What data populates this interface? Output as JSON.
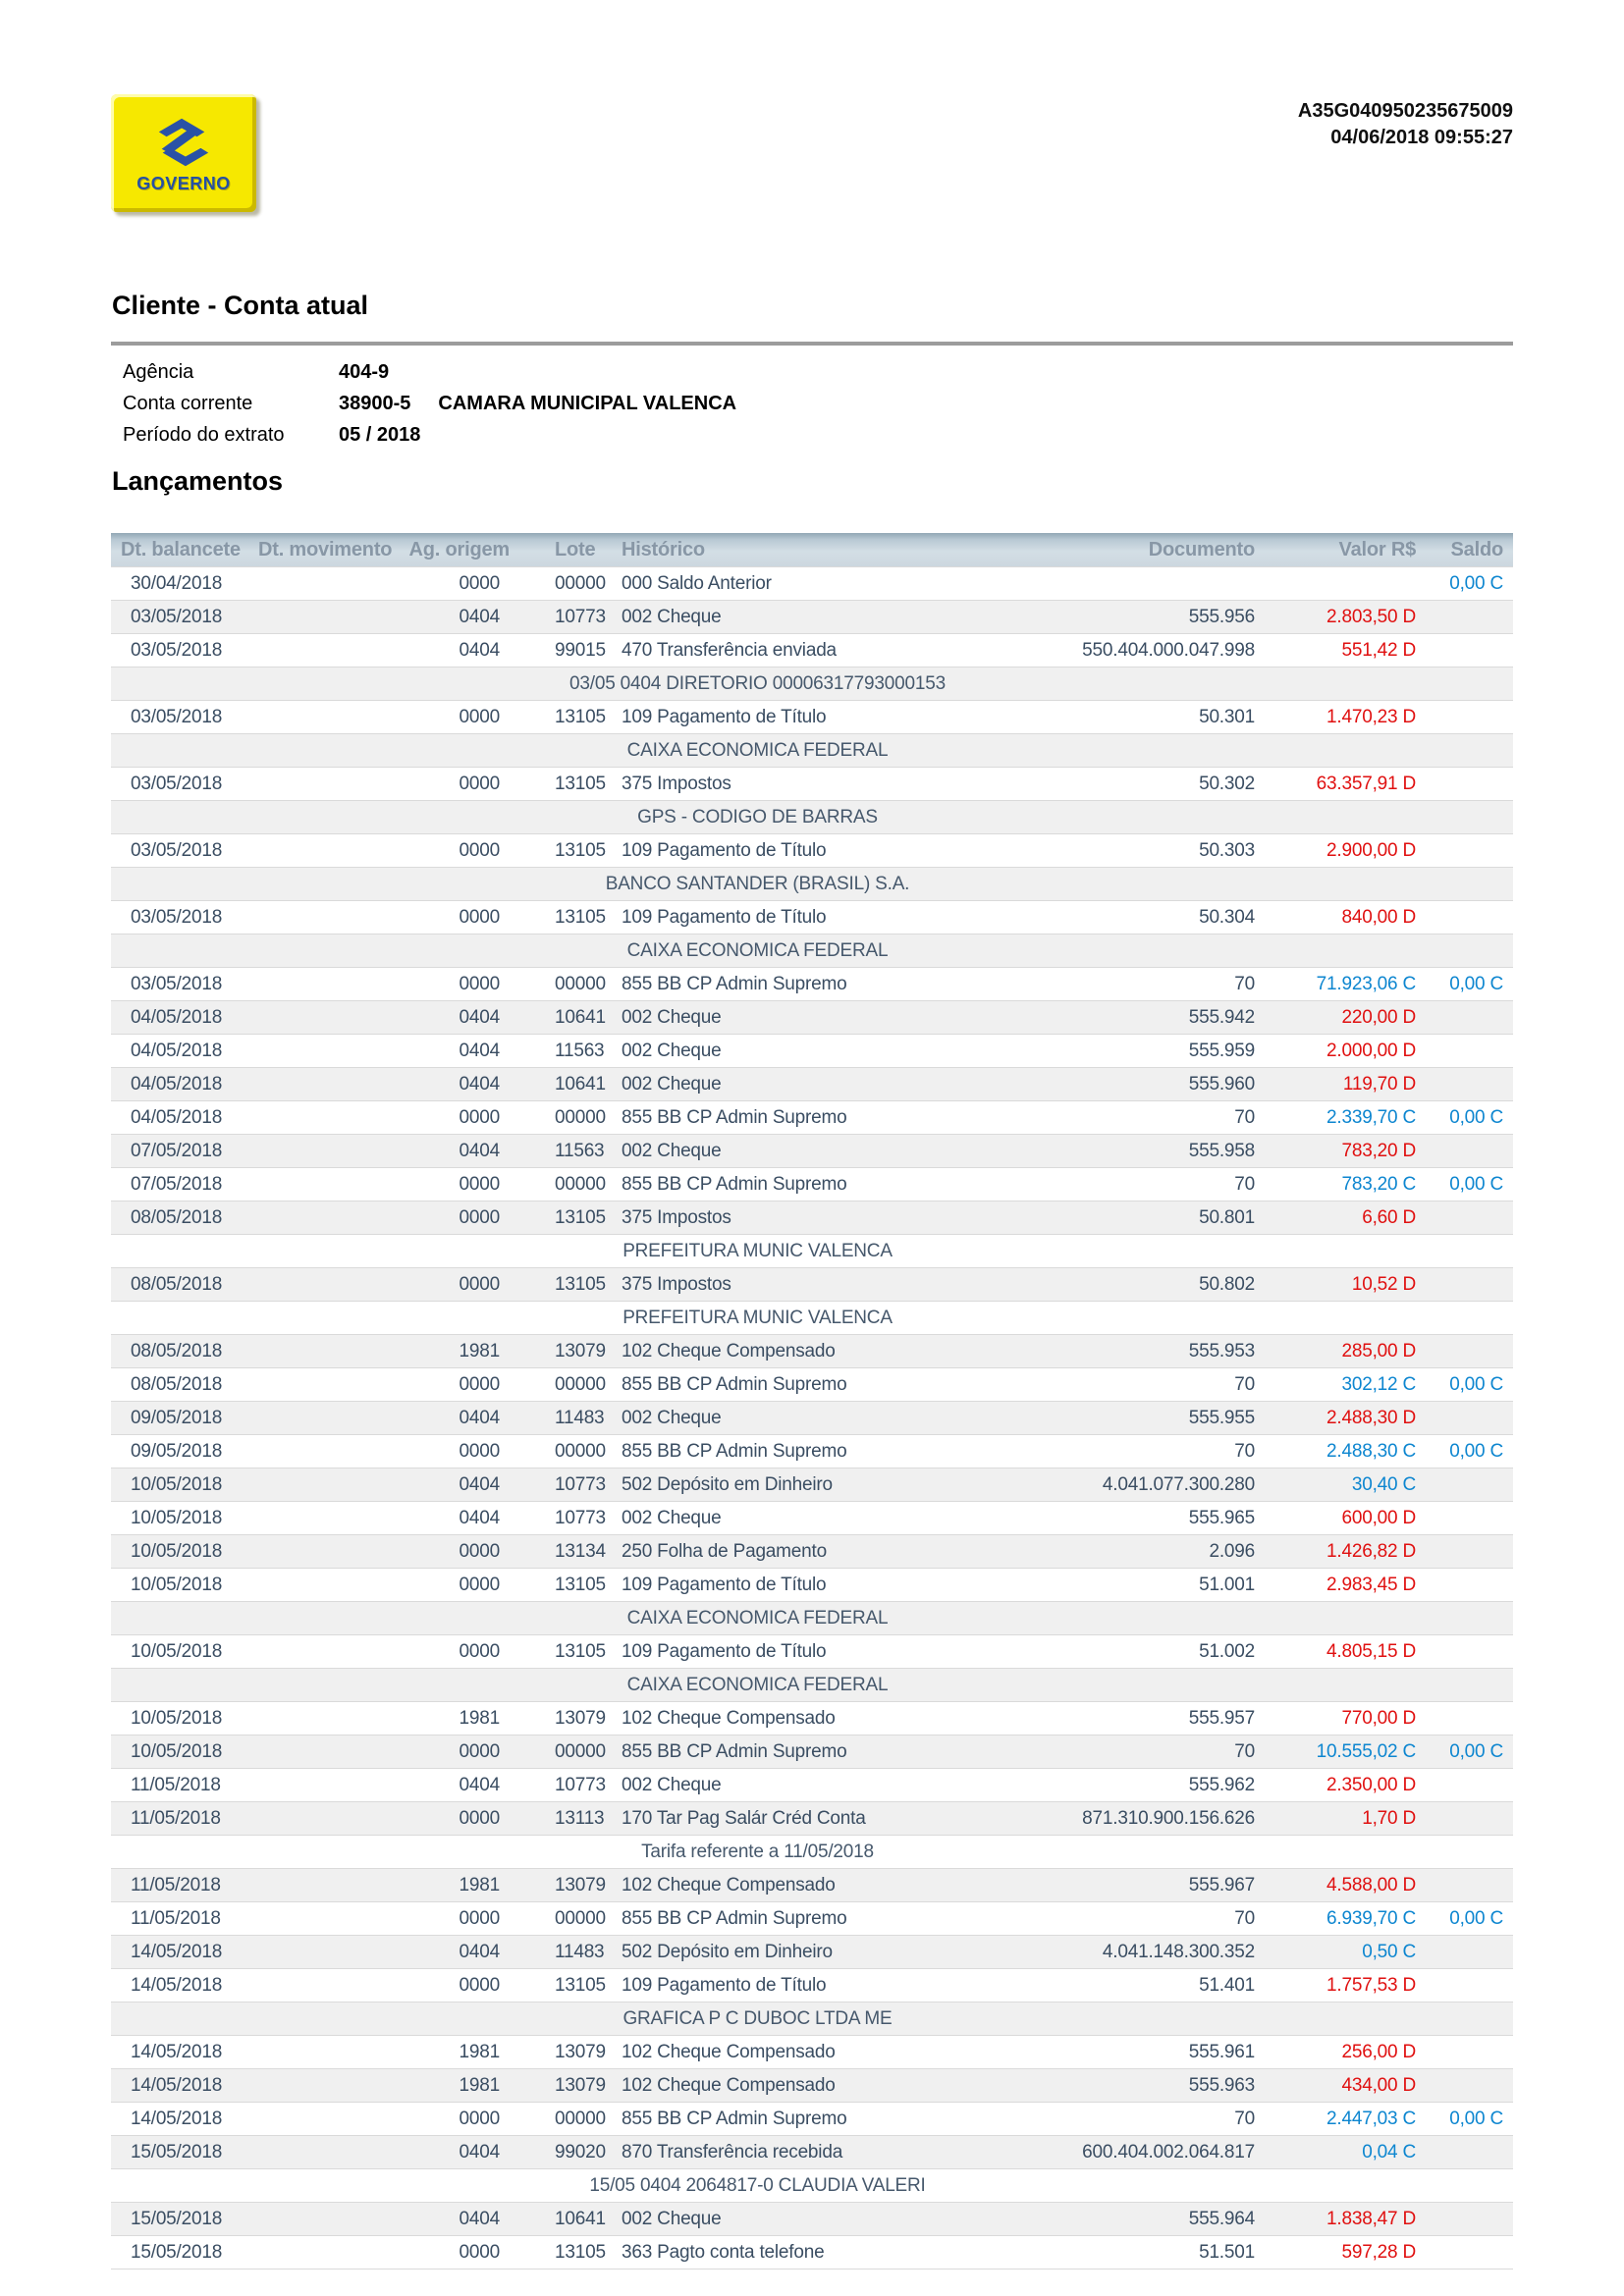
{
  "meta": {
    "protocol": "A35G040950235675009",
    "datetime": "04/06/2018 09:55:27"
  },
  "logo": {
    "text": "GOVERNO",
    "icon": "banco-do-brasil-brand-icon"
  },
  "colors": {
    "brand_yellow": "#f6e800",
    "brand_blue": "#2550a4",
    "debit_red": "#e01010",
    "credit_blue": "#0d86d0",
    "header_bar": "#ccd7df",
    "stripe_gray": "#f0f0f0"
  },
  "section_title": "Cliente - Conta atual",
  "account": {
    "agencia_label": "Agência",
    "agencia": "404-9",
    "conta_label": "Conta corrente",
    "conta_numero": "38900-5",
    "conta_titular": "CAMARA MUNICIPAL VALENCA",
    "periodo_label": "Período do extrato",
    "periodo": "05 / 2018"
  },
  "table_title": "Lançamentos",
  "table": {
    "headers": [
      "Dt. balancete",
      "Dt. movimento",
      "Ag. origem",
      "Lote",
      "Histórico",
      "Documento",
      "Valor R$",
      "Saldo"
    ],
    "rows": [
      {
        "type": "data",
        "dt_balancete": "30/04/2018",
        "dt_movimento": "",
        "ag_origem": "0000",
        "lote": "00000",
        "historico": "000 Saldo Anterior",
        "documento": "",
        "valor": "",
        "tipo": "",
        "saldo": "0,00 C"
      },
      {
        "type": "data",
        "dt_balancete": "03/05/2018",
        "dt_movimento": "",
        "ag_origem": "0404",
        "lote": "10773",
        "historico": "002 Cheque",
        "documento": "555.956",
        "valor": "2.803,50",
        "tipo": "D",
        "saldo": ""
      },
      {
        "type": "data",
        "dt_balancete": "03/05/2018",
        "dt_movimento": "",
        "ag_origem": "0404",
        "lote": "99015",
        "historico": "470 Transferência enviada",
        "documento": "550.404.000.047.998",
        "valor": "551,42",
        "tipo": "D",
        "saldo": ""
      },
      {
        "type": "cont",
        "text": "03/05 0404 DIRETORIO 00006317793000153"
      },
      {
        "type": "data",
        "dt_balancete": "03/05/2018",
        "dt_movimento": "",
        "ag_origem": "0000",
        "lote": "13105",
        "historico": "109 Pagamento de Título",
        "documento": "50.301",
        "valor": "1.470,23",
        "tipo": "D",
        "saldo": ""
      },
      {
        "type": "cont",
        "text": "CAIXA ECONOMICA FEDERAL"
      },
      {
        "type": "data",
        "dt_balancete": "03/05/2018",
        "dt_movimento": "",
        "ag_origem": "0000",
        "lote": "13105",
        "historico": "375 Impostos",
        "documento": "50.302",
        "valor": "63.357,91",
        "tipo": "D",
        "saldo": ""
      },
      {
        "type": "cont",
        "text": "GPS - CODIGO DE BARRAS"
      },
      {
        "type": "data",
        "dt_balancete": "03/05/2018",
        "dt_movimento": "",
        "ag_origem": "0000",
        "lote": "13105",
        "historico": "109 Pagamento de Título",
        "documento": "50.303",
        "valor": "2.900,00",
        "tipo": "D",
        "saldo": ""
      },
      {
        "type": "cont",
        "text": "BANCO SANTANDER (BRASIL) S.A."
      },
      {
        "type": "data",
        "dt_balancete": "03/05/2018",
        "dt_movimento": "",
        "ag_origem": "0000",
        "lote": "13105",
        "historico": "109 Pagamento de Título",
        "documento": "50.304",
        "valor": "840,00",
        "tipo": "D",
        "saldo": ""
      },
      {
        "type": "cont",
        "text": "CAIXA ECONOMICA FEDERAL"
      },
      {
        "type": "data",
        "dt_balancete": "03/05/2018",
        "dt_movimento": "",
        "ag_origem": "0000",
        "lote": "00000",
        "historico": "855 BB CP Admin Supremo",
        "documento": "70",
        "valor": "71.923,06",
        "tipo": "C",
        "saldo": "0,00 C"
      },
      {
        "type": "data",
        "dt_balancete": "04/05/2018",
        "dt_movimento": "",
        "ag_origem": "0404",
        "lote": "10641",
        "historico": "002 Cheque",
        "documento": "555.942",
        "valor": "220,00",
        "tipo": "D",
        "saldo": ""
      },
      {
        "type": "data",
        "dt_balancete": "04/05/2018",
        "dt_movimento": "",
        "ag_origem": "0404",
        "lote": "11563",
        "historico": "002 Cheque",
        "documento": "555.959",
        "valor": "2.000,00",
        "tipo": "D",
        "saldo": ""
      },
      {
        "type": "data",
        "dt_balancete": "04/05/2018",
        "dt_movimento": "",
        "ag_origem": "0404",
        "lote": "10641",
        "historico": "002 Cheque",
        "documento": "555.960",
        "valor": "119,70",
        "tipo": "D",
        "saldo": ""
      },
      {
        "type": "data",
        "dt_balancete": "04/05/2018",
        "dt_movimento": "",
        "ag_origem": "0000",
        "lote": "00000",
        "historico": "855 BB CP Admin Supremo",
        "documento": "70",
        "valor": "2.339,70",
        "tipo": "C",
        "saldo": "0,00 C"
      },
      {
        "type": "data",
        "dt_balancete": "07/05/2018",
        "dt_movimento": "",
        "ag_origem": "0404",
        "lote": "11563",
        "historico": "002 Cheque",
        "documento": "555.958",
        "valor": "783,20",
        "tipo": "D",
        "saldo": ""
      },
      {
        "type": "data",
        "dt_balancete": "07/05/2018",
        "dt_movimento": "",
        "ag_origem": "0000",
        "lote": "00000",
        "historico": "855 BB CP Admin Supremo",
        "documento": "70",
        "valor": "783,20",
        "tipo": "C",
        "saldo": "0,00 C"
      },
      {
        "type": "data",
        "dt_balancete": "08/05/2018",
        "dt_movimento": "",
        "ag_origem": "0000",
        "lote": "13105",
        "historico": "375 Impostos",
        "documento": "50.801",
        "valor": "6,60",
        "tipo": "D",
        "saldo": ""
      },
      {
        "type": "cont",
        "text": "PREFEITURA MUNIC VALENCA"
      },
      {
        "type": "data",
        "dt_balancete": "08/05/2018",
        "dt_movimento": "",
        "ag_origem": "0000",
        "lote": "13105",
        "historico": "375 Impostos",
        "documento": "50.802",
        "valor": "10,52",
        "tipo": "D",
        "saldo": ""
      },
      {
        "type": "cont",
        "text": "PREFEITURA MUNIC VALENCA"
      },
      {
        "type": "data",
        "dt_balancete": "08/05/2018",
        "dt_movimento": "",
        "ag_origem": "1981",
        "lote": "13079",
        "historico": "102 Cheque Compensado",
        "documento": "555.953",
        "valor": "285,00",
        "tipo": "D",
        "saldo": ""
      },
      {
        "type": "data",
        "dt_balancete": "08/05/2018",
        "dt_movimento": "",
        "ag_origem": "0000",
        "lote": "00000",
        "historico": "855 BB CP Admin Supremo",
        "documento": "70",
        "valor": "302,12",
        "tipo": "C",
        "saldo": "0,00 C"
      },
      {
        "type": "data",
        "dt_balancete": "09/05/2018",
        "dt_movimento": "",
        "ag_origem": "0404",
        "lote": "11483",
        "historico": "002 Cheque",
        "documento": "555.955",
        "valor": "2.488,30",
        "tipo": "D",
        "saldo": ""
      },
      {
        "type": "data",
        "dt_balancete": "09/05/2018",
        "dt_movimento": "",
        "ag_origem": "0000",
        "lote": "00000",
        "historico": "855 BB CP Admin Supremo",
        "documento": "70",
        "valor": "2.488,30",
        "tipo": "C",
        "saldo": "0,00 C"
      },
      {
        "type": "data",
        "dt_balancete": "10/05/2018",
        "dt_movimento": "",
        "ag_origem": "0404",
        "lote": "10773",
        "historico": "502 Depósito em Dinheiro",
        "documento": "4.041.077.300.280",
        "valor": "30,40",
        "tipo": "C",
        "saldo": ""
      },
      {
        "type": "data",
        "dt_balancete": "10/05/2018",
        "dt_movimento": "",
        "ag_origem": "0404",
        "lote": "10773",
        "historico": "002 Cheque",
        "documento": "555.965",
        "valor": "600,00",
        "tipo": "D",
        "saldo": ""
      },
      {
        "type": "data",
        "dt_balancete": "10/05/2018",
        "dt_movimento": "",
        "ag_origem": "0000",
        "lote": "13134",
        "historico": "250 Folha de Pagamento",
        "documento": "2.096",
        "valor": "1.426,82",
        "tipo": "D",
        "saldo": ""
      },
      {
        "type": "data",
        "dt_balancete": "10/05/2018",
        "dt_movimento": "",
        "ag_origem": "0000",
        "lote": "13105",
        "historico": "109 Pagamento de Título",
        "documento": "51.001",
        "valor": "2.983,45",
        "tipo": "D",
        "saldo": ""
      },
      {
        "type": "cont",
        "text": "CAIXA ECONOMICA FEDERAL"
      },
      {
        "type": "data",
        "dt_balancete": "10/05/2018",
        "dt_movimento": "",
        "ag_origem": "0000",
        "lote": "13105",
        "historico": "109 Pagamento de Título",
        "documento": "51.002",
        "valor": "4.805,15",
        "tipo": "D",
        "saldo": ""
      },
      {
        "type": "cont",
        "text": "CAIXA ECONOMICA FEDERAL"
      },
      {
        "type": "data",
        "dt_balancete": "10/05/2018",
        "dt_movimento": "",
        "ag_origem": "1981",
        "lote": "13079",
        "historico": "102 Cheque Compensado",
        "documento": "555.957",
        "valor": "770,00",
        "tipo": "D",
        "saldo": ""
      },
      {
        "type": "data",
        "dt_balancete": "10/05/2018",
        "dt_movimento": "",
        "ag_origem": "0000",
        "lote": "00000",
        "historico": "855 BB CP Admin Supremo",
        "documento": "70",
        "valor": "10.555,02",
        "tipo": "C",
        "saldo": "0,00 C"
      },
      {
        "type": "data",
        "dt_balancete": "11/05/2018",
        "dt_movimento": "",
        "ag_origem": "0404",
        "lote": "10773",
        "historico": "002 Cheque",
        "documento": "555.962",
        "valor": "2.350,00",
        "tipo": "D",
        "saldo": ""
      },
      {
        "type": "data",
        "dt_balancete": "11/05/2018",
        "dt_movimento": "",
        "ag_origem": "0000",
        "lote": "13113",
        "historico": "170 Tar Pag Salár Créd Conta",
        "documento": "871.310.900.156.626",
        "valor": "1,70",
        "tipo": "D",
        "saldo": ""
      },
      {
        "type": "cont",
        "text": "Tarifa referente a 11/05/2018"
      },
      {
        "type": "data",
        "dt_balancete": "11/05/2018",
        "dt_movimento": "",
        "ag_origem": "1981",
        "lote": "13079",
        "historico": "102 Cheque Compensado",
        "documento": "555.967",
        "valor": "4.588,00",
        "tipo": "D",
        "saldo": ""
      },
      {
        "type": "data",
        "dt_balancete": "11/05/2018",
        "dt_movimento": "",
        "ag_origem": "0000",
        "lote": "00000",
        "historico": "855 BB CP Admin Supremo",
        "documento": "70",
        "valor": "6.939,70",
        "tipo": "C",
        "saldo": "0,00 C"
      },
      {
        "type": "data",
        "dt_balancete": "14/05/2018",
        "dt_movimento": "",
        "ag_origem": "0404",
        "lote": "11483",
        "historico": "502 Depósito em Dinheiro",
        "documento": "4.041.148.300.352",
        "valor": "0,50",
        "tipo": "C",
        "saldo": ""
      },
      {
        "type": "data",
        "dt_balancete": "14/05/2018",
        "dt_movimento": "",
        "ag_origem": "0000",
        "lote": "13105",
        "historico": "109 Pagamento de Título",
        "documento": "51.401",
        "valor": "1.757,53",
        "tipo": "D",
        "saldo": ""
      },
      {
        "type": "cont",
        "text": "GRAFICA P C DUBOC LTDA ME"
      },
      {
        "type": "data",
        "dt_balancete": "14/05/2018",
        "dt_movimento": "",
        "ag_origem": "1981",
        "lote": "13079",
        "historico": "102 Cheque Compensado",
        "documento": "555.961",
        "valor": "256,00",
        "tipo": "D",
        "saldo": ""
      },
      {
        "type": "data",
        "dt_balancete": "14/05/2018",
        "dt_movimento": "",
        "ag_origem": "1981",
        "lote": "13079",
        "historico": "102 Cheque Compensado",
        "documento": "555.963",
        "valor": "434,00",
        "tipo": "D",
        "saldo": ""
      },
      {
        "type": "data",
        "dt_balancete": "14/05/2018",
        "dt_movimento": "",
        "ag_origem": "0000",
        "lote": "00000",
        "historico": "855 BB CP Admin Supremo",
        "documento": "70",
        "valor": "2.447,03",
        "tipo": "C",
        "saldo": "0,00 C"
      },
      {
        "type": "data",
        "dt_balancete": "15/05/2018",
        "dt_movimento": "",
        "ag_origem": "0404",
        "lote": "99020",
        "historico": "870 Transferência recebida",
        "documento": "600.404.002.064.817",
        "valor": "0,04",
        "tipo": "C",
        "saldo": ""
      },
      {
        "type": "cont",
        "text": "15/05 0404 2064817-0 CLAUDIA VALERI"
      },
      {
        "type": "data",
        "dt_balancete": "15/05/2018",
        "dt_movimento": "",
        "ag_origem": "0404",
        "lote": "10641",
        "historico": "002 Cheque",
        "documento": "555.964",
        "valor": "1.838,47",
        "tipo": "D",
        "saldo": ""
      },
      {
        "type": "data",
        "dt_balancete": "15/05/2018",
        "dt_movimento": "",
        "ag_origem": "0000",
        "lote": "13105",
        "historico": "363 Pagto conta telefone",
        "documento": "51.501",
        "valor": "597,28",
        "tipo": "D",
        "saldo": ""
      }
    ]
  }
}
